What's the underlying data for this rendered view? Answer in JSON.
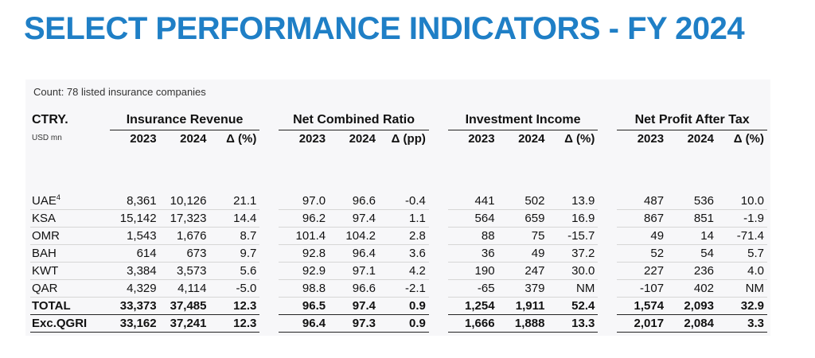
{
  "title": "SELECT PERFORMANCE INDICATORS - FY 2024",
  "count_note": "Count: 78 listed insurance companies",
  "table": {
    "ctry_header": "CTRY.",
    "unit": "USD mn",
    "groups": [
      {
        "label": "Insurance Revenue",
        "cols": [
          "2023",
          "2024",
          "Δ (%)"
        ]
      },
      {
        "label": "Net Combined Ratio",
        "cols": [
          "2023",
          "2024",
          "Δ (pp)"
        ]
      },
      {
        "label": "Investment Income",
        "cols": [
          "2023",
          "2024",
          "Δ (%)"
        ]
      },
      {
        "label": "Net Profit After Tax",
        "cols": [
          "2023",
          "2024",
          "Δ (%)"
        ]
      }
    ],
    "rows": [
      {
        "label": "UAE",
        "sup": "4",
        "values": [
          "8,361",
          "10,126",
          "21.1",
          "97.0",
          "96.6",
          "-0.4",
          "441",
          "502",
          "13.9",
          "487",
          "536",
          "10.0"
        ]
      },
      {
        "label": "KSA",
        "sup": "",
        "values": [
          "15,142",
          "17,323",
          "14.4",
          "96.2",
          "97.4",
          "1.1",
          "564",
          "659",
          "16.9",
          "867",
          "851",
          "-1.9"
        ]
      },
      {
        "label": "OMR",
        "sup": "",
        "values": [
          "1,543",
          "1,676",
          "8.7",
          "101.4",
          "104.2",
          "2.8",
          "88",
          "75",
          "-15.7",
          "49",
          "14",
          "-71.4"
        ]
      },
      {
        "label": "BAH",
        "sup": "",
        "values": [
          "614",
          "673",
          "9.7",
          "92.8",
          "96.4",
          "3.6",
          "36",
          "49",
          "37.2",
          "52",
          "54",
          "5.7"
        ]
      },
      {
        "label": "KWT",
        "sup": "",
        "values": [
          "3,384",
          "3,573",
          "5.6",
          "92.9",
          "97.1",
          "4.2",
          "190",
          "247",
          "30.0",
          "227",
          "236",
          "4.0"
        ]
      },
      {
        "label": "QAR",
        "sup": "",
        "values": [
          "4,329",
          "4,114",
          "-5.0",
          "98.8",
          "96.6",
          "-2.1",
          "-65",
          "379",
          "NM",
          "-107",
          "402",
          "NM"
        ]
      },
      {
        "label": "TOTAL",
        "sup": "",
        "bold": true,
        "values": [
          "33,373",
          "37,485",
          "12.3",
          "96.5",
          "97.4",
          "0.9",
          "1,254",
          "1,911",
          "52.4",
          "1,574",
          "2,093",
          "32.9"
        ]
      },
      {
        "label": "Exc.QGRI",
        "sup": "",
        "bold": true,
        "values": [
          "33,162",
          "37,241",
          "12.3",
          "96.4",
          "97.3",
          "0.9",
          "1,666",
          "1,888",
          "13.3",
          "2,017",
          "2,084",
          "3.3"
        ]
      }
    ]
  }
}
